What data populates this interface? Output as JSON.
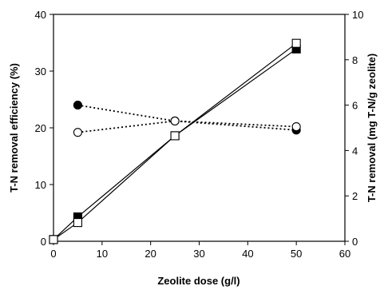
{
  "chart_data": {
    "type": "line",
    "title": "",
    "xlabel": "Zeolite dose (g/l)",
    "ylabel_left": "T-N removal efficiency (%)",
    "ylabel_right": "T-N removal (mg T-N/g zeolite)",
    "xlim": [
      0,
      60
    ],
    "ylim_left": [
      0,
      40
    ],
    "ylim_right": [
      0,
      10
    ],
    "x_ticks": [
      "0",
      "10",
      "20",
      "30",
      "40",
      "50",
      "60"
    ],
    "y_left_ticks": [
      "0",
      "10",
      "20",
      "30",
      "40"
    ],
    "y_right_ticks": [
      "0",
      "2",
      "4",
      "6",
      "8",
      "10"
    ],
    "grid": false,
    "legend": "none",
    "series": [
      {
        "axis": "left",
        "marker": "square-filled",
        "line": "solid",
        "x": [
          0,
          5,
          25,
          50
        ],
        "y": [
          0.3,
          4.3,
          18.6,
          33.9
        ]
      },
      {
        "axis": "left",
        "marker": "square-open",
        "line": "solid",
        "x": [
          0,
          5,
          25,
          50
        ],
        "y": [
          0.3,
          3.3,
          18.6,
          34.9
        ]
      },
      {
        "axis": "right",
        "marker": "circle-filled",
        "line": "dotted",
        "x": [
          5,
          25,
          50
        ],
        "y": [
          6.0,
          5.3,
          4.9
        ]
      },
      {
        "axis": "right",
        "marker": "circle-open",
        "line": "dotted",
        "x": [
          5,
          25,
          50
        ],
        "y": [
          4.8,
          5.3,
          5.05
        ]
      }
    ]
  }
}
